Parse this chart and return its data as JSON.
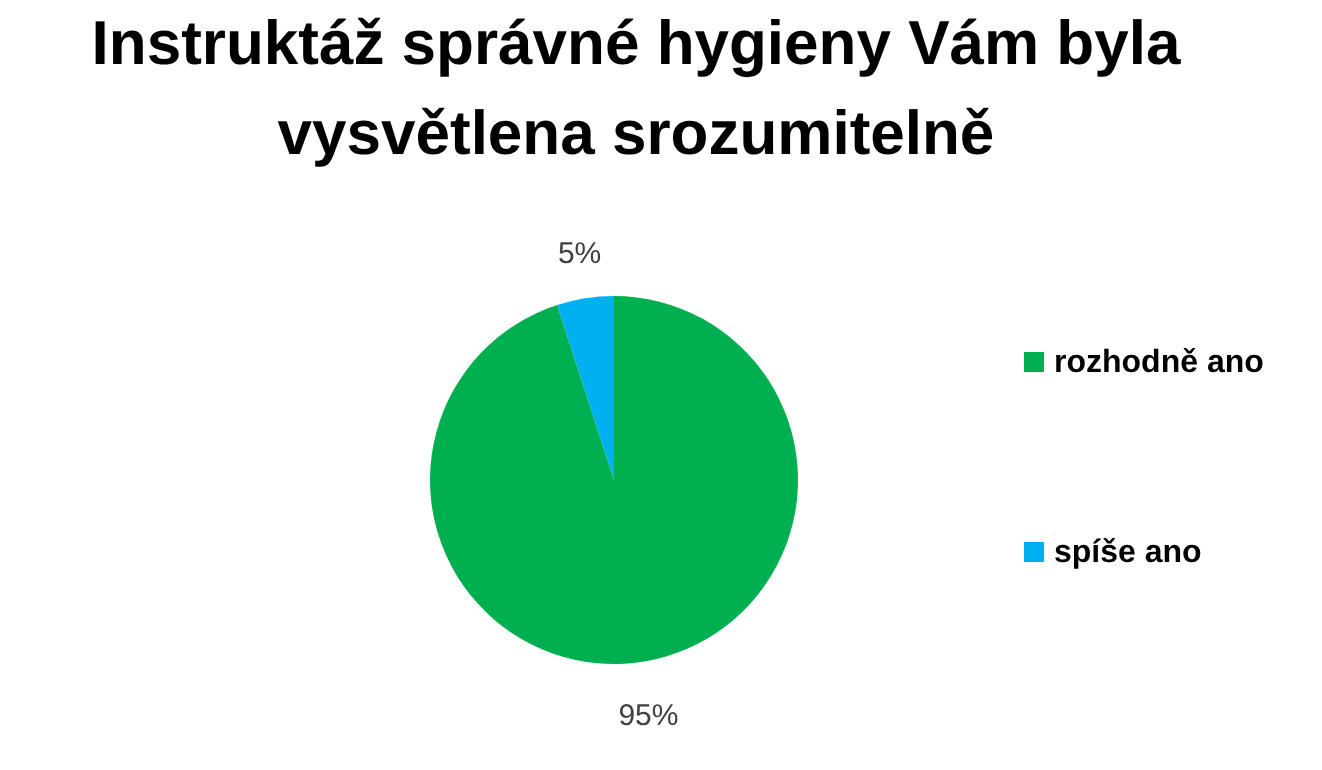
{
  "chart_data": {
    "type": "pie",
    "title": "Instruktáž správné hygieny Vám byla vysvětlena srozumitelně",
    "categories": [
      "rozhodně ano",
      "spíše ano"
    ],
    "values": [
      95,
      5
    ],
    "colors": [
      "#00b050",
      "#00b0f0"
    ],
    "value_labels": [
      "95%",
      "5%"
    ],
    "legend": "right"
  }
}
